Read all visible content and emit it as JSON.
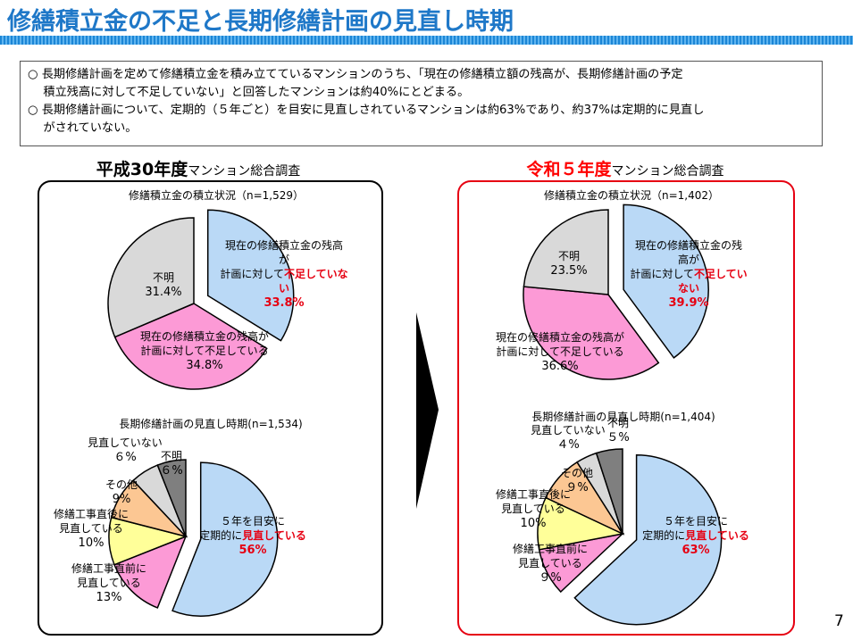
{
  "title": "修繕積立金の不足と長期修繕計画の見直し時期",
  "summary": [
    [
      "○ 長期修繕計画を定めて修繕積立金を積み立てているマンションのうち、「現在の修繕積立額の残高が、長期修繕計画の予定",
      "　 積立残高に対して不足していない」と回答したマンションは約40%にとどまる。"
    ],
    [
      "○ 長期修繕計画について、定期的（５年ごと）を目安に見直しされているマンションは約63%であり、約37%は定期的に見直し",
      "　 がされていない。"
    ]
  ],
  "panels": {
    "left": {
      "heading_bold": "平成30年度",
      "heading_rest": "マンション総合調査"
    },
    "right": {
      "heading_bold": "令和５年度",
      "heading_rest": "マンション総合調査"
    }
  },
  "colors": {
    "blue": "#bad9f6",
    "pink": "#fc9ad6",
    "gray_light": "#d9d9d9",
    "orange": "#fcc793",
    "yellow": "#ffff99",
    "gray_dark": "#7f7f7f",
    "red": "#e60012",
    "heading_red": "#ff0000",
    "title_blue": "#1f78c8"
  },
  "chart_data": [
    {
      "type": "pie",
      "title": "修繕積立金の積立状況（n=1,529）",
      "slices": [
        {
          "label_lines": [
            "現在の修繕積立金の残高",
            "が",
            "計画に対して"
          ],
          "label_red": [
            "不足していな",
            "い"
          ],
          "value": 33.8,
          "value_text": "33.8%",
          "color": "blue",
          "exploded": true
        },
        {
          "label_lines": [
            "現在の修繕積立金の残高が",
            "計画に対して不足している"
          ],
          "value": 34.8,
          "value_text": "34.8%",
          "color": "pink"
        },
        {
          "label_lines": [
            "不明"
          ],
          "value": 31.4,
          "value_text": "31.4%",
          "color": "gray_light"
        }
      ]
    },
    {
      "type": "pie",
      "title": "長期修繕計画の見直し時期(n=1,534)",
      "slices": [
        {
          "label_lines": [
            "５年を目安に",
            "定期的に"
          ],
          "label_red": [
            "見直している"
          ],
          "value": 56,
          "value_text": "56%",
          "color": "blue",
          "exploded": true
        },
        {
          "label_lines": [
            "修繕工事直前に",
            "見直している"
          ],
          "value": 13,
          "value_text": "13%",
          "color": "pink"
        },
        {
          "label_lines": [
            "修繕工事直後に",
            "見直している"
          ],
          "value": 10,
          "value_text": "10%",
          "color": "yellow"
        },
        {
          "label_lines": [
            "その他"
          ],
          "value": 9,
          "value_text": "9%",
          "color": "orange"
        },
        {
          "label_lines": [
            "見直していない"
          ],
          "value": 6,
          "value_text": "６%",
          "color": "gray_light"
        },
        {
          "label_lines": [
            "不明"
          ],
          "value": 6,
          "value_text": "６%",
          "color": "gray_dark"
        }
      ]
    },
    {
      "type": "pie",
      "title": "修繕積立金の積立状況（n=1,402）",
      "slices": [
        {
          "label_lines": [
            "現在の修繕積立金の残",
            "高が",
            "計画に対して"
          ],
          "label_red": [
            "不足してい",
            "ない"
          ],
          "value": 39.9,
          "value_text": "39.9%",
          "color": "blue",
          "exploded": true
        },
        {
          "label_lines": [
            "現在の修繕積立金の残高が",
            "計画に対して不足している"
          ],
          "value": 36.6,
          "value_text": "36.6%",
          "color": "pink"
        },
        {
          "label_lines": [
            "不明"
          ],
          "value": 23.5,
          "value_text": "23.5%",
          "color": "gray_light"
        }
      ]
    },
    {
      "type": "pie",
      "title": "長期修繕計画の見直し時期(n=1,404)",
      "slices": [
        {
          "label_lines": [
            "５年を目安に",
            "定期的に"
          ],
          "label_red": [
            "見直している"
          ],
          "value": 63,
          "value_text": "63%",
          "color": "blue",
          "exploded": true
        },
        {
          "label_lines": [
            "修繕工事直前に",
            "見直している"
          ],
          "value": 9,
          "value_text": "９%",
          "color": "pink"
        },
        {
          "label_lines": [
            "修繕工事直後に",
            "見直している"
          ],
          "value": 10,
          "value_text": "10%",
          "color": "yellow"
        },
        {
          "label_lines": [
            "その他"
          ],
          "value": 9,
          "value_text": "９%",
          "color": "orange"
        },
        {
          "label_lines": [
            "見直していない"
          ],
          "value": 4,
          "value_text": "４%",
          "color": "gray_light"
        },
        {
          "label_lines": [
            "不明"
          ],
          "value": 5,
          "value_text": "５%",
          "color": "gray_dark"
        }
      ]
    }
  ],
  "page_number": "7"
}
